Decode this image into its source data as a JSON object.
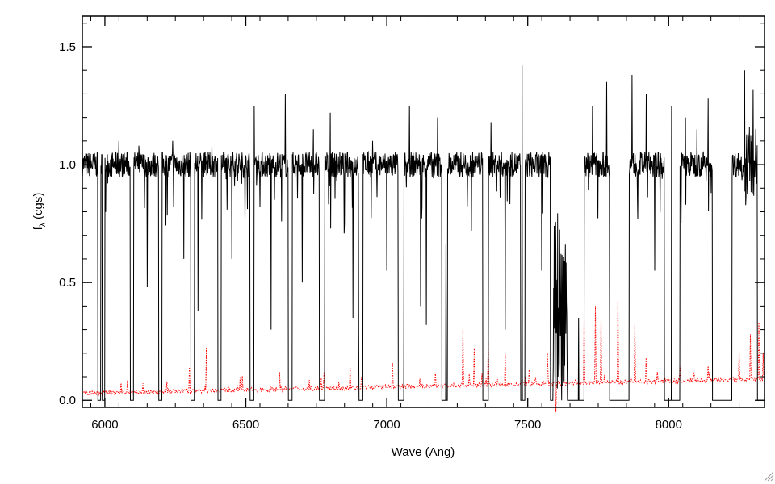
{
  "chart_data": {
    "type": "line",
    "xlabel": "Wave (Ang)",
    "ylabel_main": "f",
    "ylabel_sub": "λ",
    "ylabel_tail": " (cgs)",
    "xlim": [
      5920,
      8340
    ],
    "ylim": [
      -0.03,
      1.63
    ],
    "xticks": [
      "6000",
      "6500",
      "7000",
      "7500",
      "8000"
    ],
    "xtick_values": [
      6000,
      6500,
      7000,
      7500,
      8000
    ],
    "yticks": [
      "0.0",
      "0.5",
      "1.0",
      "1.5"
    ],
    "ytick_values": [
      0.0,
      0.5,
      1.0,
      1.5
    ],
    "grid": false,
    "series": [
      {
        "style": "solid",
        "color": "#000000",
        "continuum": 1.0,
        "noise": 0.055,
        "gaps": [
          [
            5975,
            5985
          ],
          [
            5990,
            6000
          ],
          [
            6090,
            6102
          ],
          [
            6190,
            6202
          ],
          [
            6305,
            6318
          ],
          [
            6400,
            6412
          ],
          [
            6515,
            6530
          ],
          [
            6650,
            6665
          ],
          [
            6760,
            6780
          ],
          [
            6900,
            6915
          ],
          [
            7040,
            7060
          ],
          [
            7195,
            7215
          ],
          [
            7340,
            7360
          ],
          [
            7475,
            7490
          ],
          [
            7580,
            7590
          ],
          [
            7640,
            7700
          ],
          [
            7790,
            7860
          ],
          [
            7985,
            8040
          ],
          [
            8155,
            8225
          ],
          [
            8315,
            8340
          ]
        ],
        "spikes": [
          [
            6010,
            0.92
          ],
          [
            6050,
            1.1
          ],
          [
            6120,
            1.08
          ],
          [
            6150,
            0.48
          ],
          [
            6240,
            1.1
          ],
          [
            6280,
            0.6
          ],
          [
            6330,
            0.38
          ],
          [
            6380,
            1.08
          ],
          [
            6450,
            0.6
          ],
          [
            6530,
            1.25
          ],
          [
            6590,
            0.3
          ],
          [
            6640,
            1.3
          ],
          [
            6700,
            0.5
          ],
          [
            6740,
            1.15
          ],
          [
            6800,
            1.22
          ],
          [
            6850,
            0.75
          ],
          [
            6880,
            0.35
          ],
          [
            6900,
            0.28
          ],
          [
            6950,
            1.1
          ],
          [
            7000,
            0.55
          ],
          [
            7080,
            1.25
          ],
          [
            7120,
            0.4
          ],
          [
            7140,
            0.32
          ],
          [
            7180,
            1.2
          ],
          [
            7210,
            0.66
          ],
          [
            7300,
            0.72
          ],
          [
            7370,
            1.18
          ],
          [
            7420,
            0.3
          ],
          [
            7480,
            1.42
          ],
          [
            7550,
            0.55
          ],
          [
            7605,
            0.05
          ],
          [
            7620,
            0.0
          ],
          [
            7680,
            0.35
          ],
          [
            7730,
            1.25
          ],
          [
            7780,
            1.35
          ],
          [
            7870,
            1.38
          ],
          [
            7920,
            1.3
          ],
          [
            7950,
            0.55
          ],
          [
            8010,
            1.25
          ],
          [
            8060,
            1.2
          ],
          [
            8100,
            1.15
          ],
          [
            8140,
            1.28
          ],
          [
            8270,
            1.4
          ],
          [
            8300,
            1.32
          ]
        ]
      },
      {
        "style": "dotted",
        "color": "#ff0000",
        "baseline_start": 0.03,
        "baseline_end": 0.09,
        "spikes": [
          [
            6220,
            0.08
          ],
          [
            6300,
            0.14
          ],
          [
            6360,
            0.22
          ],
          [
            6480,
            0.1
          ],
          [
            6620,
            0.12
          ],
          [
            6870,
            0.14
          ],
          [
            7020,
            0.16
          ],
          [
            7270,
            0.3
          ],
          [
            7310,
            0.22
          ],
          [
            7360,
            0.25
          ],
          [
            7420,
            0.2
          ],
          [
            7570,
            0.2
          ],
          [
            7600,
            -0.05
          ],
          [
            7700,
            0.35
          ],
          [
            7740,
            0.4
          ],
          [
            7760,
            0.35
          ],
          [
            7820,
            0.42
          ],
          [
            7880,
            0.32
          ],
          [
            7920,
            0.18
          ],
          [
            7960,
            0.12
          ],
          [
            8090,
            0.12
          ],
          [
            8250,
            0.2
          ],
          [
            8290,
            0.28
          ],
          [
            8320,
            0.33
          ],
          [
            8335,
            0.2
          ]
        ]
      }
    ]
  }
}
